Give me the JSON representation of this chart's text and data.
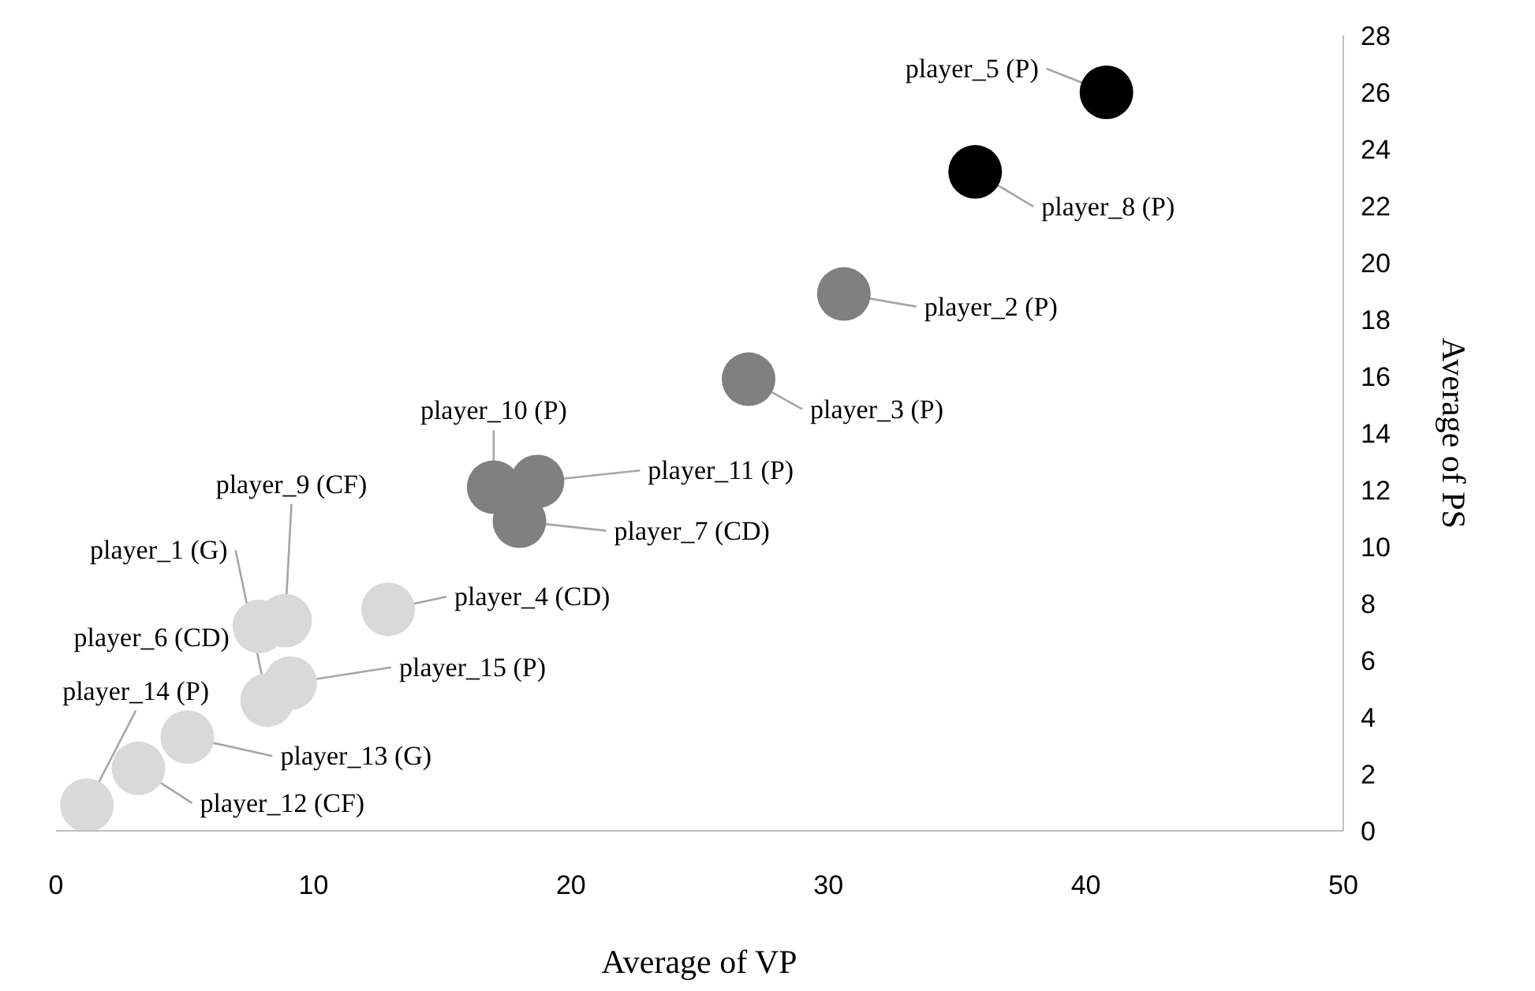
{
  "chart_data": {
    "type": "scatter",
    "xlabel": "Average of VP",
    "ylabel": "Average of PS",
    "x": [
      40.8,
      35.7,
      30.6,
      26.9,
      17.0,
      18.7,
      18.0,
      12.9,
      8.9,
      8.2,
      7.9,
      9.1,
      5.1,
      1.2,
      3.2
    ],
    "values": [
      26.0,
      23.2,
      18.9,
      15.9,
      12.1,
      12.3,
      10.9,
      7.8,
      7.4,
      4.6,
      7.2,
      5.2,
      3.3,
      0.9,
      2.2
    ],
    "colors": [
      "#000000",
      "#000000",
      "#808080",
      "#808080",
      "#808080",
      "#808080",
      "#808080",
      "#d9d9d9",
      "#d9d9d9",
      "#d9d9d9",
      "#d9d9d9",
      "#d9d9d9",
      "#d9d9d9",
      "#d9d9d9",
      "#d9d9d9"
    ],
    "annotations": [
      {
        "text": "player_5 (P)",
        "x": 40.8,
        "y": 26.0
      },
      {
        "text": "player_8 (P)",
        "x": 35.7,
        "y": 23.2
      },
      {
        "text": "player_2 (P)",
        "x": 30.6,
        "y": 18.9
      },
      {
        "text": "player_3 (P)",
        "x": 26.9,
        "y": 15.9
      },
      {
        "text": "player_10 (P)",
        "x": 17.0,
        "y": 12.1
      },
      {
        "text": "player_11 (P)",
        "x": 18.7,
        "y": 12.3
      },
      {
        "text": "player_7 (CD)",
        "x": 18.0,
        "y": 10.9
      },
      {
        "text": "player_4 (CD)",
        "x": 12.9,
        "y": 7.8
      },
      {
        "text": "player_9 (CF)",
        "x": 8.9,
        "y": 7.4
      },
      {
        "text": "player_1 (G)",
        "x": 8.2,
        "y": 4.6
      },
      {
        "text": "player_6 (CD)",
        "x": 7.9,
        "y": 7.2
      },
      {
        "text": "player_15 (P)",
        "x": 9.1,
        "y": 5.2
      },
      {
        "text": "player_13 (G)",
        "x": 5.1,
        "y": 3.3
      },
      {
        "text": "player_14 (P)",
        "x": 1.2,
        "y": 0.9
      },
      {
        "text": "player_12 (CF)",
        "x": 3.2,
        "y": 2.2
      }
    ],
    "xlim": [
      0,
      50
    ],
    "xticks": [
      0,
      10,
      20,
      30,
      40,
      50
    ],
    "ylim": [
      0,
      28
    ],
    "yticks": [
      0,
      2,
      4,
      6,
      8,
      10,
      12,
      14,
      16,
      18,
      20,
      22,
      24,
      26,
      28
    ],
    "marker": "circle",
    "grid": false
  }
}
